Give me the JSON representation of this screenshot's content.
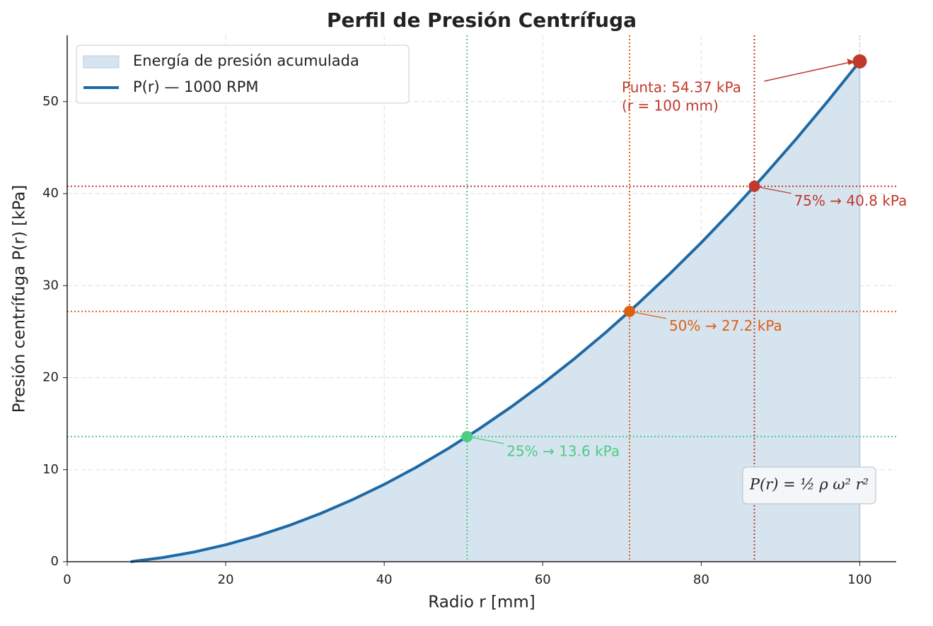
{
  "chart_data": {
    "type": "line",
    "title": "Perfil de Presión Centrífuga",
    "xlabel": "Radio r  [mm]",
    "ylabel": "Presión centrífuga P(r)  [kPa]",
    "xlim": [
      0,
      104.6
    ],
    "ylim": [
      0,
      57.2
    ],
    "xticks": [
      0,
      20,
      40,
      60,
      80,
      100
    ],
    "yticks": [
      0,
      10,
      20,
      30,
      40,
      50
    ],
    "grid": true,
    "legend": "upper left",
    "x": [
      8,
      12,
      16,
      20,
      24,
      28,
      32,
      36,
      40,
      44,
      48,
      52,
      56,
      60,
      64,
      68,
      72,
      76,
      80,
      84,
      88,
      92,
      96,
      100
    ],
    "series": [
      {
        "name": "Energía de presión acumulada",
        "kind": "area",
        "color": "#d6e4f0",
        "values": [
          0,
          0.44,
          1.05,
          1.84,
          2.8,
          3.94,
          5.25,
          6.74,
          8.4,
          10.24,
          12.26,
          14.45,
          16.81,
          19.35,
          22.06,
          24.95,
          28.02,
          31.26,
          34.67,
          38.26,
          42.02,
          45.96,
          50.08,
          54.37
        ]
      },
      {
        "name": "P(r)  —  1000 RPM",
        "kind": "line",
        "color": "#1f69a5",
        "values": [
          0,
          0.44,
          1.05,
          1.84,
          2.8,
          3.94,
          5.25,
          6.74,
          8.4,
          10.24,
          12.26,
          14.45,
          16.81,
          19.35,
          22.06,
          24.95,
          28.02,
          31.26,
          34.67,
          38.26,
          42.02,
          45.96,
          50.08,
          54.37
        ]
      }
    ],
    "markers": [
      {
        "x": 50.45,
        "y": 13.6,
        "color": "#4ecb84",
        "label": "25% → 13.6 kPa"
      },
      {
        "x": 70.95,
        "y": 27.2,
        "color": "#dd6010",
        "label": "50% → 27.2 kPa"
      },
      {
        "x": 86.7,
        "y": 40.8,
        "color": "#c0392b",
        "label": "75% → 40.8 kPa"
      }
    ],
    "tip": {
      "x": 100,
      "y": 54.37,
      "color": "#c0392b",
      "label": [
        "Punta: 54.37 kPa",
        "(r = 100 mm)"
      ]
    },
    "formula": "P(r) = ½ ρ ω² r²"
  }
}
